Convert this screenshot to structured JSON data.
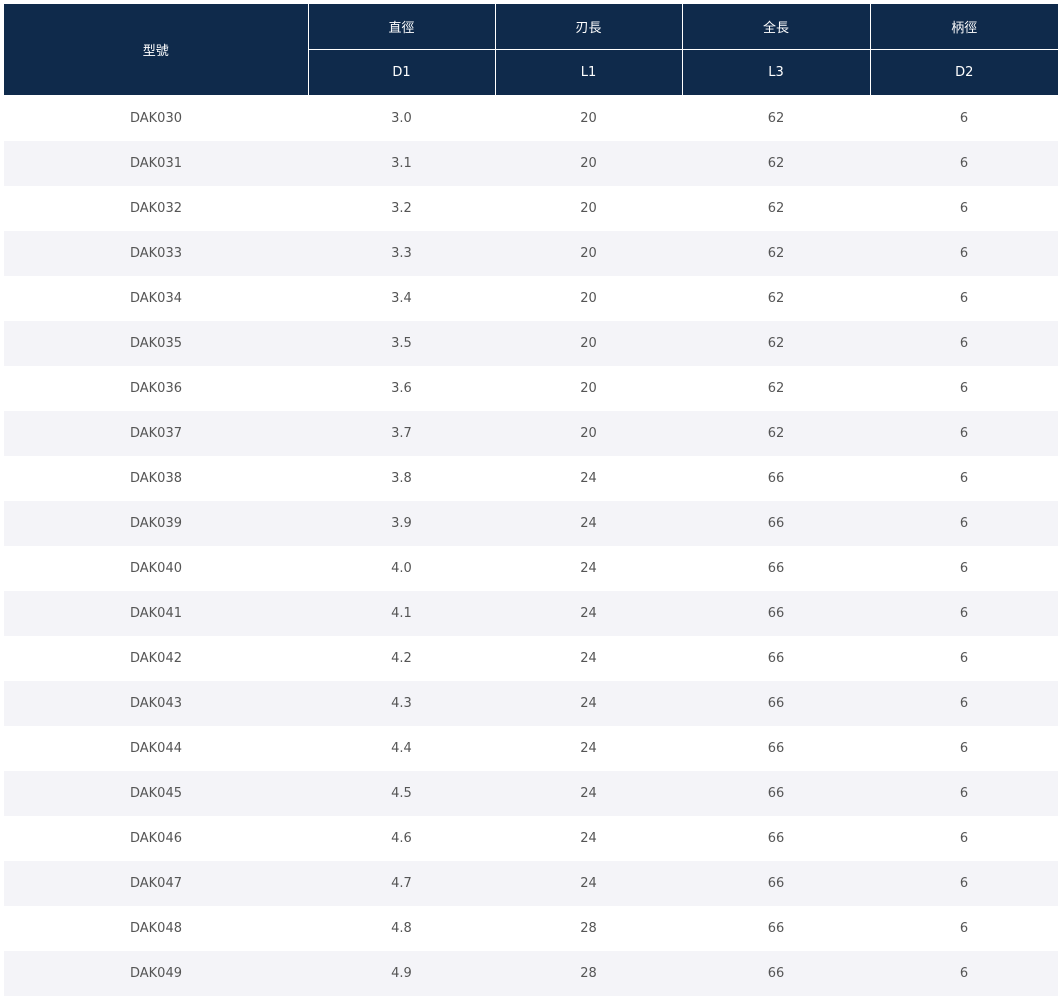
{
  "header": {
    "model": "型號",
    "columns": [
      {
        "name": "直徑",
        "code": "D1"
      },
      {
        "name": "刃長",
        "code": "L1"
      },
      {
        "name": "全長",
        "code": "L3"
      },
      {
        "name": "柄徑",
        "code": "D2"
      }
    ]
  },
  "rows": [
    [
      "DAK030",
      "3.0",
      "20",
      "62",
      "6"
    ],
    [
      "DAK031",
      "3.1",
      "20",
      "62",
      "6"
    ],
    [
      "DAK032",
      "3.2",
      "20",
      "62",
      "6"
    ],
    [
      "DAK033",
      "3.3",
      "20",
      "62",
      "6"
    ],
    [
      "DAK034",
      "3.4",
      "20",
      "62",
      "6"
    ],
    [
      "DAK035",
      "3.5",
      "20",
      "62",
      "6"
    ],
    [
      "DAK036",
      "3.6",
      "20",
      "62",
      "6"
    ],
    [
      "DAK037",
      "3.7",
      "20",
      "62",
      "6"
    ],
    [
      "DAK038",
      "3.8",
      "24",
      "66",
      "6"
    ],
    [
      "DAK039",
      "3.9",
      "24",
      "66",
      "6"
    ],
    [
      "DAK040",
      "4.0",
      "24",
      "66",
      "6"
    ],
    [
      "DAK041",
      "4.1",
      "24",
      "66",
      "6"
    ],
    [
      "DAK042",
      "4.2",
      "24",
      "66",
      "6"
    ],
    [
      "DAK043",
      "4.3",
      "24",
      "66",
      "6"
    ],
    [
      "DAK044",
      "4.4",
      "24",
      "66",
      "6"
    ],
    [
      "DAK045",
      "4.5",
      "24",
      "66",
      "6"
    ],
    [
      "DAK046",
      "4.6",
      "24",
      "66",
      "6"
    ],
    [
      "DAK047",
      "4.7",
      "24",
      "66",
      "6"
    ],
    [
      "DAK048",
      "4.8",
      "28",
      "66",
      "6"
    ],
    [
      "DAK049",
      "4.9",
      "28",
      "66",
      "6"
    ]
  ]
}
